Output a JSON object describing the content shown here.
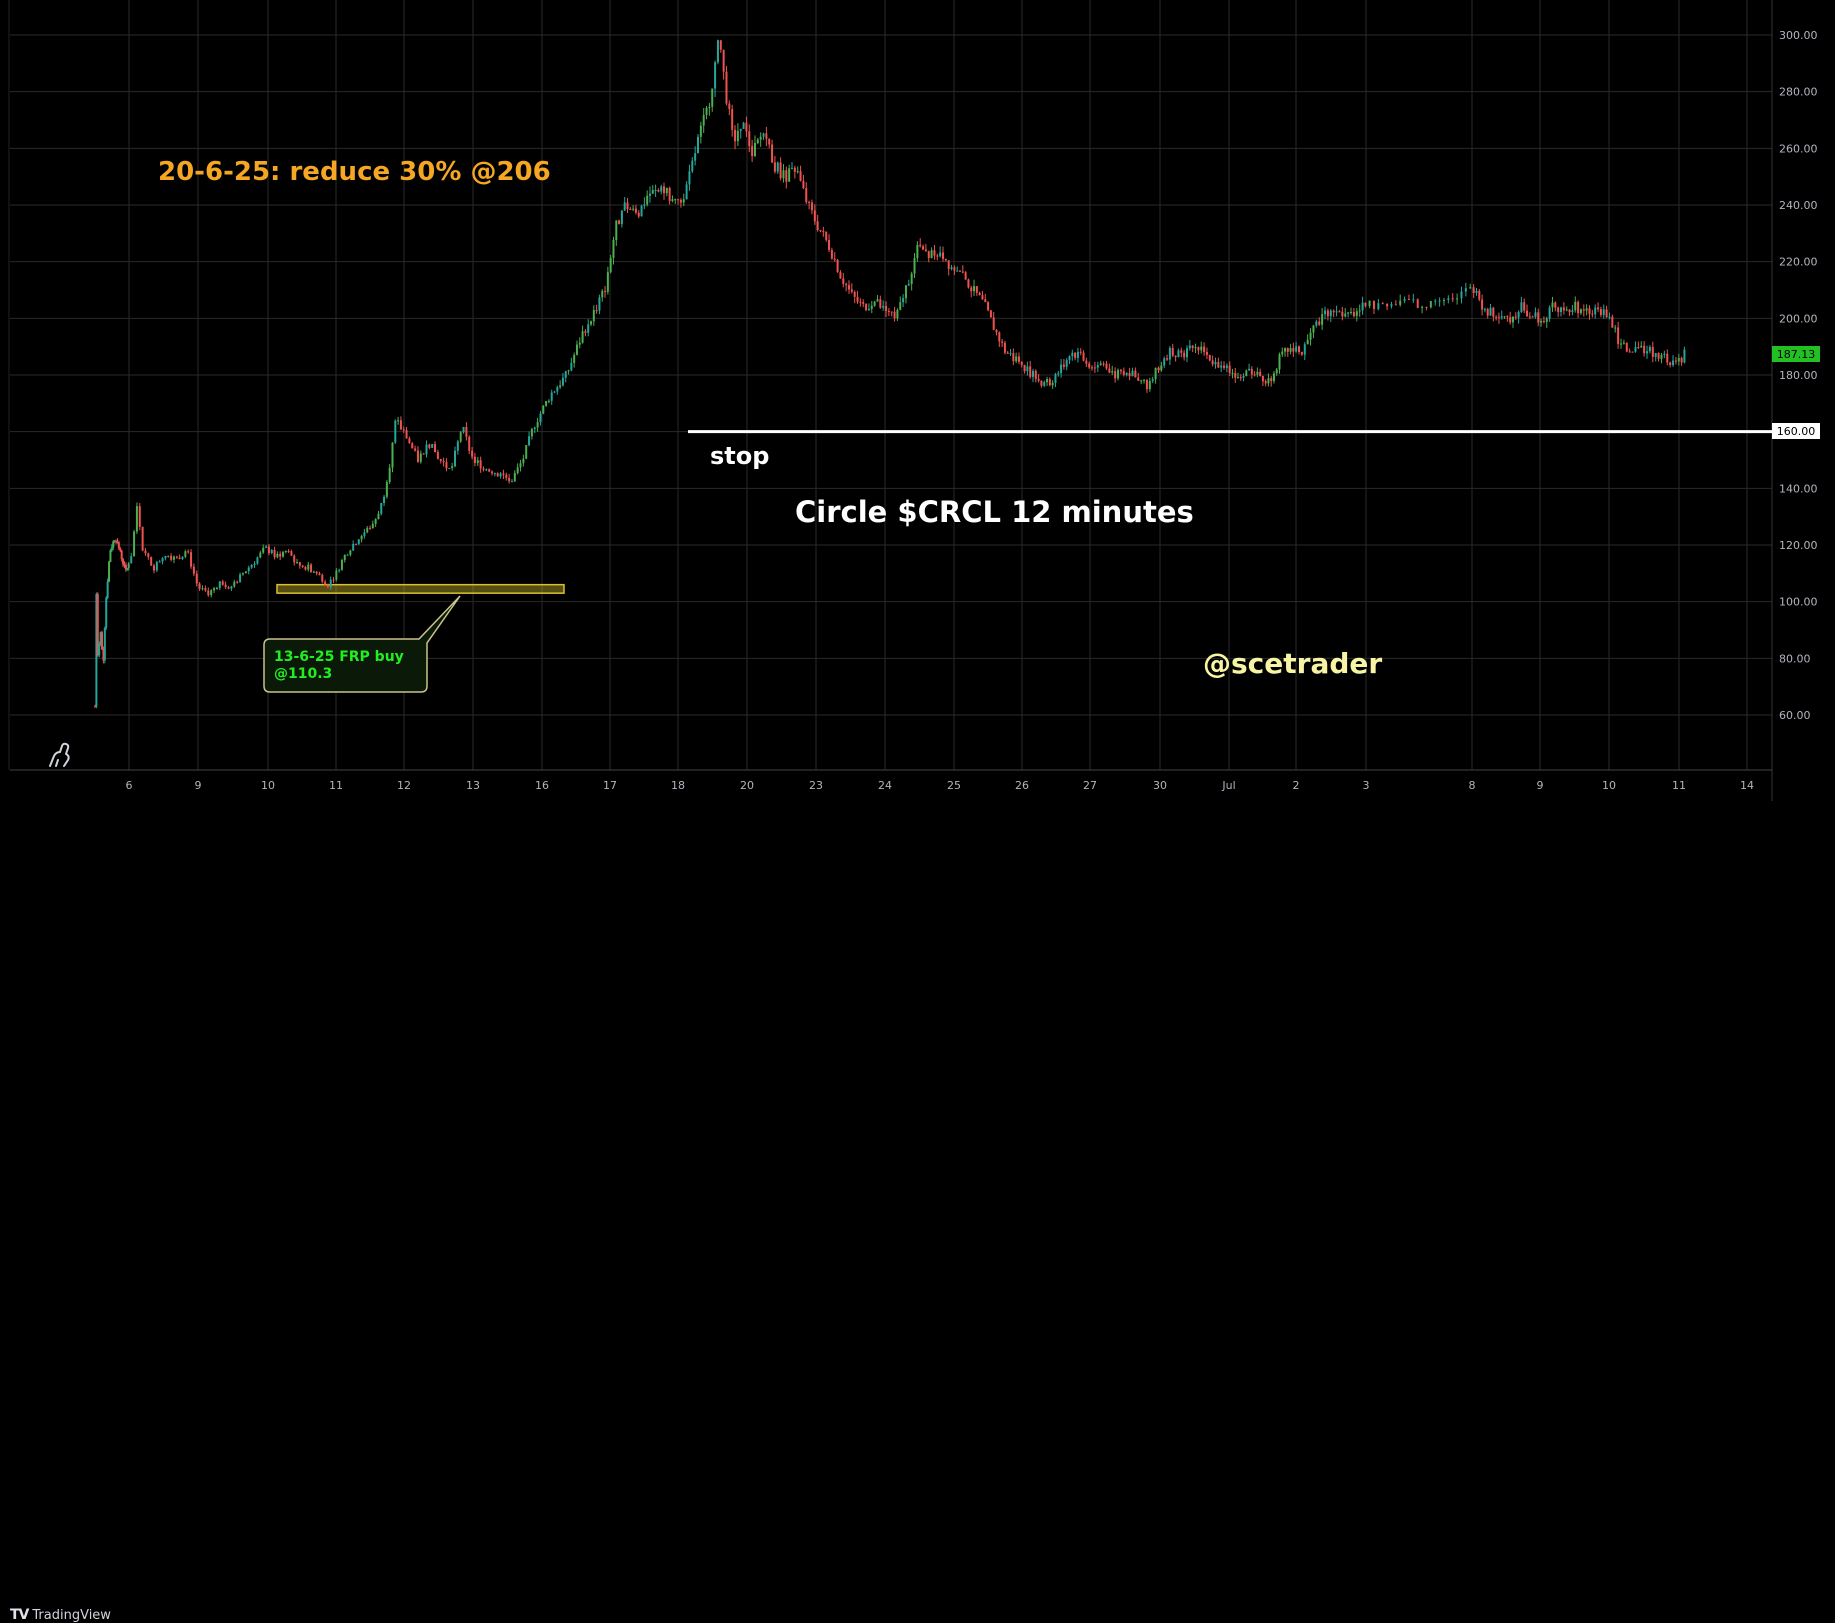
{
  "chart_data": {
    "type": "candlestick",
    "title": "Circle $CRCL 12 minutes",
    "x_ticks": [
      "6",
      "9",
      "10",
      "11",
      "12",
      "13",
      "16",
      "17",
      "18",
      "20",
      "23",
      "24",
      "25",
      "26",
      "27",
      "30",
      "Jul",
      "2",
      "3",
      "8",
      "9",
      "10",
      "11",
      "14"
    ],
    "y_ticks": [
      "300.00",
      "280.00",
      "260.00",
      "240.00",
      "220.00",
      "200.00",
      "180.00",
      "160.00",
      "140.00",
      "120.00",
      "100.00",
      "80.00",
      "60.00"
    ],
    "ylim": [
      50,
      305
    ],
    "price_path": [
      [
        0,
        63
      ],
      [
        0.01,
        104
      ],
      [
        0.02,
        80
      ],
      [
        0.04,
        90
      ],
      [
        0.06,
        78
      ],
      [
        0.08,
        100
      ],
      [
        0.11,
        118
      ],
      [
        0.15,
        123
      ],
      [
        0.2,
        115
      ],
      [
        0.23,
        110
      ],
      [
        0.26,
        117
      ],
      [
        0.28,
        135
      ],
      [
        0.3,
        118
      ],
      [
        0.34,
        112
      ],
      [
        0.38,
        117
      ],
      [
        0.42,
        115
      ],
      [
        0.46,
        118
      ],
      [
        0.5,
        105
      ],
      [
        0.54,
        103
      ],
      [
        0.58,
        107
      ],
      [
        0.62,
        105
      ],
      [
        0.66,
        110
      ],
      [
        0.7,
        114
      ],
      [
        0.74,
        119
      ],
      [
        0.78,
        116
      ],
      [
        0.82,
        118
      ],
      [
        0.86,
        113
      ],
      [
        0.9,
        112
      ],
      [
        0.94,
        109
      ],
      [
        0.97,
        106
      ],
      [
        1.0,
        110
      ],
      [
        1.03,
        116
      ],
      [
        1.06,
        120
      ],
      [
        1.1,
        124
      ],
      [
        1.14,
        128
      ],
      [
        1.17,
        135
      ],
      [
        1.2,
        150
      ],
      [
        1.22,
        164
      ],
      [
        1.26,
        158
      ],
      [
        1.3,
        150
      ],
      [
        1.34,
        156
      ],
      [
        1.38,
        150
      ],
      [
        1.42,
        146
      ],
      [
        1.46,
        162
      ],
      [
        1.5,
        150
      ],
      [
        1.55,
        147
      ],
      [
        1.6,
        145
      ],
      [
        1.64,
        143
      ],
      [
        1.68,
        150
      ],
      [
        1.72,
        162
      ],
      [
        1.78,
        173
      ],
      [
        1.84,
        180
      ],
      [
        1.9,
        195
      ],
      [
        1.94,
        202
      ],
      [
        1.98,
        210
      ],
      [
        2.02,
        232
      ],
      [
        2.06,
        240
      ],
      [
        2.1,
        236
      ],
      [
        2.14,
        244
      ],
      [
        2.2,
        245
      ],
      [
        2.24,
        240
      ],
      [
        2.28,
        245
      ],
      [
        2.32,
        262
      ],
      [
        2.36,
        275
      ],
      [
        2.4,
        299
      ],
      [
        2.42,
        282
      ],
      [
        2.45,
        262
      ],
      [
        2.48,
        270
      ],
      [
        2.52,
        258
      ],
      [
        2.56,
        266
      ],
      [
        2.6,
        254
      ],
      [
        2.64,
        250
      ],
      [
        2.68,
        252
      ],
      [
        2.72,
        240
      ],
      [
        2.76,
        232
      ],
      [
        2.8,
        225
      ],
      [
        2.84,
        215
      ],
      [
        2.88,
        208
      ],
      [
        2.92,
        204
      ],
      [
        2.96,
        206
      ],
      [
        3.0,
        203
      ],
      [
        3.04,
        200
      ],
      [
        3.08,
        212
      ],
      [
        3.12,
        225
      ],
      [
        3.16,
        222
      ],
      [
        3.2,
        224
      ],
      [
        3.24,
        218
      ],
      [
        3.28,
        215
      ],
      [
        3.32,
        210
      ],
      [
        3.36,
        205
      ],
      [
        3.4,
        196
      ],
      [
        3.44,
        188
      ],
      [
        3.48,
        186
      ],
      [
        3.52,
        182
      ],
      [
        3.56,
        178
      ],
      [
        3.6,
        177
      ],
      [
        3.64,
        182
      ],
      [
        3.68,
        188
      ],
      [
        3.72,
        186
      ],
      [
        3.76,
        183
      ],
      [
        3.8,
        184
      ],
      [
        3.84,
        180
      ],
      [
        3.88,
        182
      ],
      [
        3.92,
        178
      ],
      [
        3.96,
        176
      ],
      [
        4.0,
        184
      ],
      [
        4.04,
        189
      ],
      [
        4.08,
        186
      ],
      [
        4.12,
        190
      ],
      [
        4.16,
        188
      ],
      [
        4.2,
        184
      ],
      [
        4.24,
        183
      ],
      [
        4.28,
        180
      ],
      [
        4.32,
        182
      ],
      [
        4.36,
        180
      ],
      [
        4.4,
        178
      ],
      [
        4.44,
        186
      ],
      [
        4.48,
        190
      ],
      [
        4.52,
        188
      ],
      [
        4.56,
        196
      ],
      [
        4.6,
        202
      ],
      [
        4.64,
        204
      ],
      [
        4.68,
        200
      ],
      [
        4.72,
        203
      ],
      [
        4.76,
        205
      ],
      [
        4.8,
        204
      ],
      [
        4.84,
        206
      ],
      [
        4.88,
        204
      ],
      [
        4.92,
        208
      ],
      [
        4.96,
        206
      ],
      [
        5.0,
        212
      ],
      [
        5.03,
        206
      ],
      [
        5.06,
        202
      ],
      [
        5.1,
        202
      ],
      [
        5.14,
        200
      ],
      [
        5.18,
        204
      ],
      [
        5.22,
        201
      ],
      [
        5.26,
        200
      ],
      [
        5.3,
        205
      ],
      [
        5.34,
        203
      ],
      [
        5.38,
        204
      ],
      [
        5.42,
        202
      ],
      [
        5.46,
        203
      ],
      [
        5.5,
        200
      ],
      [
        5.54,
        191
      ],
      [
        5.58,
        188
      ],
      [
        5.62,
        189
      ],
      [
        5.66,
        188
      ],
      [
        5.7,
        186
      ],
      [
        5.74,
        184
      ],
      [
        5.77,
        187.13
      ]
    ],
    "last_price": "187.13",
    "stop_label": "stop",
    "stop_price": "160.00",
    "stop_value": 160,
    "zone": {
      "low": 103,
      "high": 106
    },
    "annotations": {
      "reduce": "20-6-25: reduce 30% @206",
      "buy_line1": "13-6-25 FRP buy",
      "buy_line2": "@110.3",
      "handle": "@scetrader"
    },
    "colors": {
      "up": "#26a69a",
      "up_bright": "#4caf50",
      "down": "#ef5350",
      "accent_orange": "#f5a623",
      "buy_text": "#22ee22",
      "handle": "#f7f5a4",
      "last_price_bg": "#22c022"
    }
  },
  "brand": {
    "logo": "TV",
    "name": "TradingView"
  }
}
